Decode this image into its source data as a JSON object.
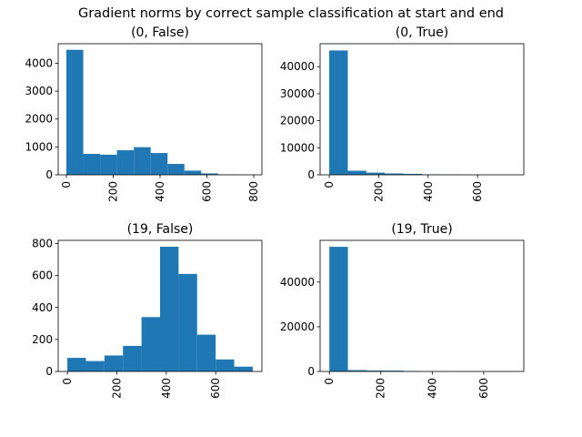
{
  "figure": {
    "title": "Gradient norms by correct sample classification at start and end"
  },
  "chart_data": [
    {
      "type": "bar",
      "title": "(0, False)",
      "bin_edges": [
        0,
        72,
        144,
        216,
        288,
        360,
        432,
        504,
        576,
        648,
        720
      ],
      "values": [
        4480,
        750,
        720,
        880,
        990,
        780,
        390,
        150,
        50,
        10
      ],
      "xlim": [
        -35,
        835
      ],
      "ylim": [
        0,
        4700
      ],
      "xticks": [
        0,
        200,
        400,
        600,
        800
      ],
      "yticks": [
        0,
        1000,
        2000,
        3000,
        4000
      ],
      "color": "#1f77b4"
    },
    {
      "type": "bar",
      "title": "(0, True)",
      "bin_edges": [
        0,
        75,
        150,
        225,
        300,
        375,
        450,
        525,
        600,
        675,
        750
      ],
      "values": [
        46000,
        1500,
        800,
        500,
        350,
        150,
        60,
        20,
        10,
        5
      ],
      "xlim": [
        -37,
        787
      ],
      "ylim": [
        0,
        48500
      ],
      "xticks": [
        0,
        200,
        400,
        600
      ],
      "yticks": [
        0,
        10000,
        20000,
        30000,
        40000
      ],
      "color": "#1f77b4"
    },
    {
      "type": "bar",
      "title": "(19, False)",
      "bin_edges": [
        0,
        75,
        150,
        225,
        300,
        375,
        450,
        525,
        600,
        675,
        750
      ],
      "values": [
        85,
        65,
        100,
        160,
        340,
        780,
        610,
        230,
        75,
        30
      ],
      "xlim": [
        -37,
        787
      ],
      "ylim": [
        0,
        820
      ],
      "xticks": [
        0,
        200,
        400,
        600
      ],
      "yticks": [
        0,
        200,
        400,
        600,
        800
      ],
      "color": "#1f77b4"
    },
    {
      "type": "bar",
      "title": "(19, True)",
      "bin_edges": [
        0,
        72,
        144,
        216,
        288,
        360,
        432,
        504,
        576,
        648,
        720
      ],
      "values": [
        55800,
        600,
        400,
        350,
        150,
        60,
        30,
        15,
        10,
        5
      ],
      "xlim": [
        -36,
        756
      ],
      "ylim": [
        0,
        58700
      ],
      "xticks": [
        0,
        200,
        400,
        600
      ],
      "yticks": [
        0,
        20000,
        40000
      ],
      "color": "#1f77b4"
    }
  ]
}
